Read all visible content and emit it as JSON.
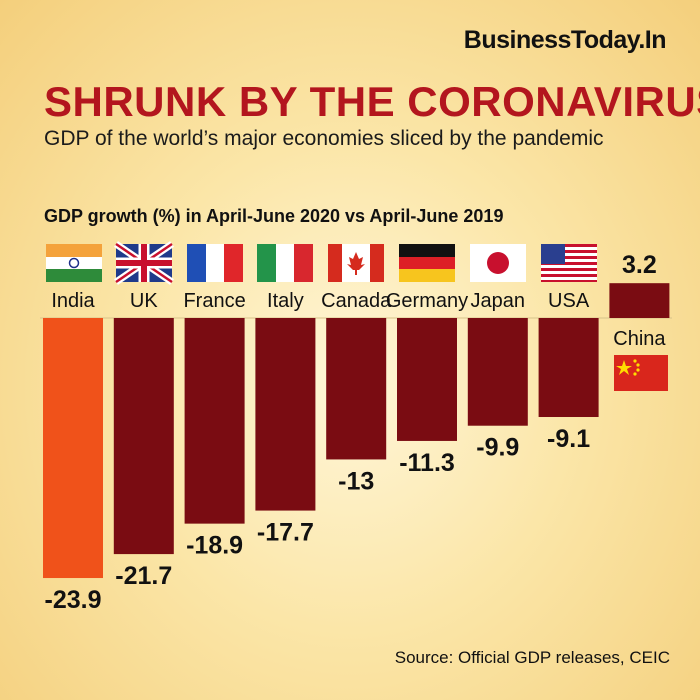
{
  "brand": "BusinessToday.In",
  "title": "SHRUNK BY THE CORONAVIRUS",
  "subtitle": "GDP of the world’s major economies sliced by the pandemic",
  "source": "Source: Official GDP releases, CEIC",
  "chart_data": {
    "type": "bar",
    "title": "GDP growth (%) in April-June 2020 vs April-June 2019",
    "categories": [
      "India",
      "UK",
      "France",
      "Italy",
      "Canada",
      "Germany",
      "Japan",
      "USA",
      "China"
    ],
    "values": [
      -23.9,
      -21.7,
      -18.9,
      -17.7,
      -13,
      -11.3,
      -9.9,
      -9.1,
      3.2
    ],
    "value_labels": [
      "-23.9",
      "-21.7",
      "-18.9",
      "-17.7",
      "-13",
      "-11.3",
      "-9.9",
      "-9.1",
      "3.2"
    ],
    "flags": [
      "india-flag-icon",
      "uk-flag-icon",
      "france-flag-icon",
      "italy-flag-icon",
      "canada-flag-icon",
      "germany-flag-icon",
      "japan-flag-icon",
      "usa-flag-icon",
      "china-flag-icon"
    ],
    "colors": {
      "highlight": "#f0521a",
      "bar": "#7a0c12"
    },
    "ylim": [
      -24,
      3.5
    ],
    "grid": false
  }
}
